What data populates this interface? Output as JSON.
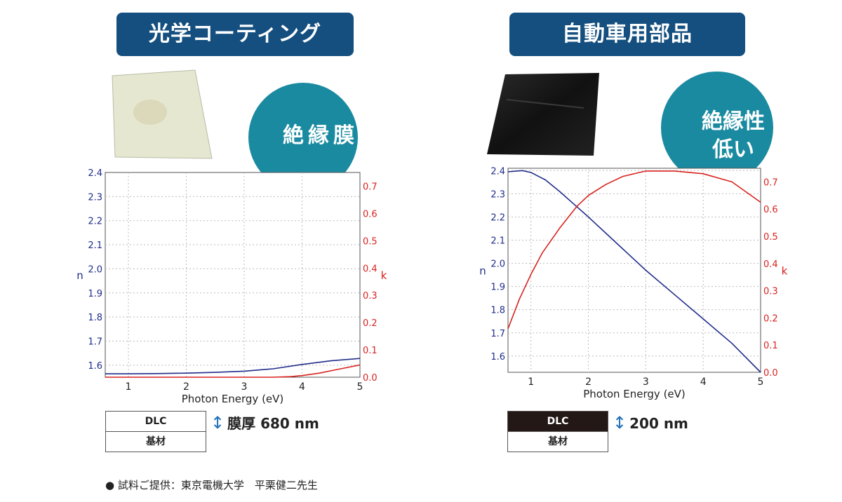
{
  "colors": {
    "banner": "#144f7f",
    "bubble": "#1a8aa0",
    "n_series": "#1f2d8a",
    "k_series": "#d7231f",
    "grid": "#bbbbbb",
    "dlc_dark": "#231815"
  },
  "left": {
    "title": "光学コーティング",
    "bubble": "絶縁膜",
    "layers": {
      "dlc": "DLC",
      "substrate": "基材"
    },
    "thickness": "膜厚 680 nm"
  },
  "right": {
    "title": "自動車用部品",
    "bubble_line1": "絶縁性",
    "bubble_line2": "低い",
    "layers": {
      "dlc": "DLC",
      "substrate": "基材"
    },
    "thickness": "200 nm"
  },
  "credit": "● 試料ご提供：東京電機大学　平栗健二先生",
  "chart_data": [
    {
      "type": "line",
      "xlabel": "Photon Energy (eV)",
      "ylabel": "n",
      "ylabel_right": "k",
      "xlim": [
        0.6,
        5
      ],
      "ylim": [
        1.55,
        2.4
      ],
      "ylim_right": [
        0.0,
        0.75
      ],
      "xticks": [
        1,
        2,
        3,
        4,
        5
      ],
      "yticks": [
        1.6,
        1.7,
        1.8,
        1.9,
        2.0,
        2.1,
        2.2,
        2.3,
        2.4
      ],
      "yticks_right": [
        0.0,
        0.1,
        0.2,
        0.3,
        0.4,
        0.5,
        0.6,
        0.7
      ],
      "grid": true,
      "series": [
        {
          "axis": "left",
          "x": [
            0.6,
            1.0,
            1.5,
            2.0,
            2.5,
            3.0,
            3.5,
            4.0,
            4.5,
            5.0
          ],
          "values": [
            1.564,
            1.564,
            1.565,
            1.567,
            1.57,
            1.575,
            1.585,
            1.603,
            1.618,
            1.628
          ]
        },
        {
          "axis": "right",
          "x": [
            0.6,
            1.0,
            2.0,
            3.0,
            3.5,
            3.8,
            4.0,
            4.3,
            4.6,
            5.0
          ],
          "values": [
            0.0,
            0.0,
            0.0,
            0.0,
            0.0,
            0.002,
            0.006,
            0.015,
            0.028,
            0.045
          ]
        }
      ]
    },
    {
      "type": "line",
      "xlabel": "Photon Energy (eV)",
      "ylabel": "n",
      "ylabel_right": "k",
      "xlim": [
        0.6,
        5
      ],
      "ylim": [
        1.53,
        2.41
      ],
      "ylim_right": [
        0.0,
        0.75
      ],
      "xticks": [
        1,
        2,
        3,
        4,
        5
      ],
      "yticks": [
        1.6,
        1.7,
        1.8,
        1.9,
        2.0,
        2.1,
        2.2,
        2.3,
        2.4
      ],
      "yticks_right": [
        0.0,
        0.1,
        0.2,
        0.3,
        0.4,
        0.5,
        0.6,
        0.7
      ],
      "grid": true,
      "series": [
        {
          "axis": "left",
          "x": [
            0.6,
            0.85,
            1.0,
            1.25,
            1.5,
            1.75,
            2.0,
            2.5,
            3.0,
            3.5,
            4.0,
            4.5,
            5.0
          ],
          "values": [
            2.395,
            2.4,
            2.392,
            2.36,
            2.31,
            2.255,
            2.2,
            2.085,
            1.97,
            1.865,
            1.76,
            1.655,
            1.53
          ]
        },
        {
          "axis": "right",
          "x": [
            0.6,
            0.8,
            1.0,
            1.2,
            1.5,
            1.8,
            2.0,
            2.3,
            2.6,
            3.0,
            3.5,
            4.0,
            4.5,
            5.0
          ],
          "values": [
            0.16,
            0.27,
            0.36,
            0.44,
            0.53,
            0.61,
            0.65,
            0.69,
            0.72,
            0.74,
            0.74,
            0.73,
            0.7,
            0.625
          ]
        }
      ]
    }
  ]
}
